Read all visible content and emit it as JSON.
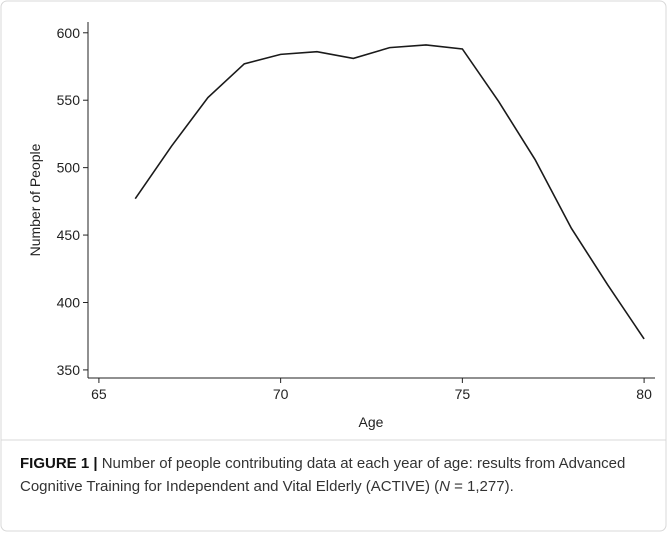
{
  "chart_data": {
    "type": "line",
    "xlabel": "Age",
    "ylabel": "Number of People",
    "x": [
      66,
      67,
      68,
      69,
      70,
      71,
      72,
      73,
      74,
      75,
      76,
      77,
      78,
      79,
      80
    ],
    "series": [
      {
        "name": "Number of People",
        "color": "#1a1a1a",
        "values": [
          477,
          516,
          552,
          577,
          584,
          586,
          581,
          589,
          591,
          588,
          549,
          506,
          455,
          413,
          373
        ]
      }
    ],
    "xlim": [
      64.7,
      80.3
    ],
    "xticks": [
      65,
      70,
      75,
      80
    ],
    "ylim": [
      344,
      608
    ],
    "yticks": [
      350,
      400,
      450,
      500,
      550,
      600
    ],
    "grid": false
  },
  "caption": {
    "label": "FIGURE 1 |",
    "text": " Number of people contributing data at each year of age: results from Advanced Cognitive Training for Independent and Vital Elderly (ACTIVE) (",
    "italic": "N",
    "end": " = 1,277)."
  }
}
